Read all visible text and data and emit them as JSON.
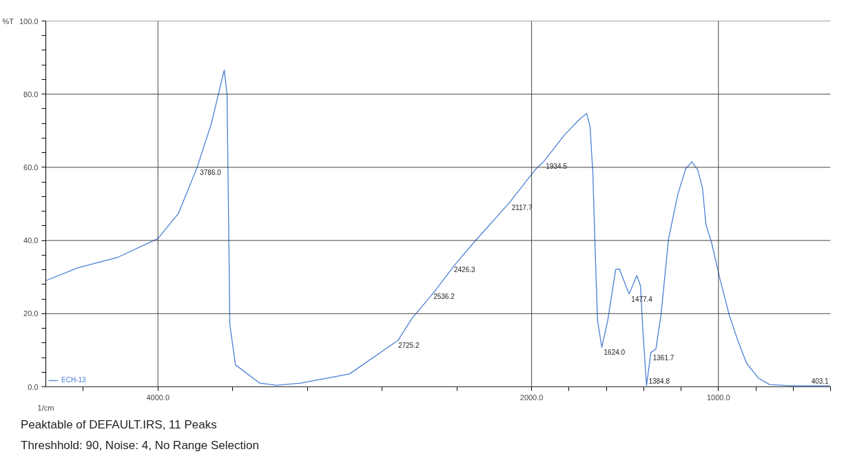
{
  "chart_data": {
    "type": "line",
    "xlabel": "1/cm",
    "ylabel": "%T",
    "xlim": [
      4600,
      400
    ],
    "ylim": [
      0,
      100
    ],
    "xticks": [
      {
        "value": 4400,
        "label": null
      },
      {
        "value": 4000,
        "label": "4000.0"
      },
      {
        "value": 3600,
        "label": null
      },
      {
        "value": 3200,
        "label": null
      },
      {
        "value": 2800,
        "label": null
      },
      {
        "value": 2400,
        "label": null
      },
      {
        "value": 2000,
        "label": "2000.0"
      },
      {
        "value": 1800,
        "label": null
      },
      {
        "value": 1600,
        "label": null
      },
      {
        "value": 1400,
        "label": null
      },
      {
        "value": 1200,
        "label": null
      },
      {
        "value": 1000,
        "label": "1000.0"
      },
      {
        "value": 800,
        "label": null
      },
      {
        "value": 600,
        "label": null
      },
      {
        "value": 400,
        "label": null
      }
    ],
    "yticks": [
      {
        "value": 0,
        "label": "0.0"
      },
      {
        "value": 4,
        "label": null
      },
      {
        "value": 8,
        "label": null
      },
      {
        "value": 12,
        "label": null
      },
      {
        "value": 16,
        "label": null
      },
      {
        "value": 20,
        "label": "20.0"
      },
      {
        "value": 24,
        "label": null
      },
      {
        "value": 28,
        "label": null
      },
      {
        "value": 32,
        "label": null
      },
      {
        "value": 36,
        "label": null
      },
      {
        "value": 40,
        "label": "40.0"
      },
      {
        "value": 44,
        "label": null
      },
      {
        "value": 48,
        "label": null
      },
      {
        "value": 52,
        "label": null
      },
      {
        "value": 56,
        "label": null
      },
      {
        "value": 60,
        "label": "60.0"
      },
      {
        "value": 64,
        "label": null
      },
      {
        "value": 68,
        "label": null
      },
      {
        "value": 72,
        "label": null
      },
      {
        "value": 76,
        "label": null
      },
      {
        "value": 80,
        "label": "80.0"
      },
      {
        "value": 84,
        "label": null
      },
      {
        "value": 88,
        "label": null
      },
      {
        "value": 92,
        "label": null
      },
      {
        "value": 96,
        "label": null
      },
      {
        "value": 100,
        "label": "100.0"
      }
    ],
    "grid": true,
    "legend": "bottom left",
    "line_style": "solid",
    "series": [
      {
        "name": "ECH-13",
        "color": "#4a7fd4",
        "x": [
          4600,
          4430,
          4215,
          4000,
          3890,
          3790,
          3715,
          3645,
          3630,
          3615,
          3585,
          3455,
          3365,
          3235,
          2975,
          2715,
          2640,
          2520,
          2410,
          2310,
          2117.7,
          1980,
          1934.5,
          1825,
          1742,
          1705,
          1687,
          1672,
          1660,
          1647,
          1624,
          1592,
          1550,
          1530,
          1497,
          1477.4,
          1437,
          1417,
          1405,
          1384.8,
          1361.7,
          1335,
          1307,
          1267,
          1217,
          1175,
          1142,
          1110,
          1085,
          1067,
          1037,
          992,
          942,
          900,
          850,
          785,
          725,
          617,
          403.1
        ],
        "values": [
          29,
          32.5,
          35.4,
          40.5,
          47.4,
          60,
          71.8,
          86.6,
          80,
          17,
          6,
          1,
          0.4,
          1,
          3.5,
          12.7,
          18.7,
          26,
          33.4,
          39.4,
          50.4,
          59.4,
          61.6,
          68.8,
          73.2,
          74.7,
          71,
          58.3,
          37.6,
          18.1,
          10.8,
          18.3,
          32.1,
          32.2,
          27.8,
          25.4,
          30.4,
          27.6,
          15.9,
          0.3,
          9.4,
          10.3,
          19.8,
          40.4,
          52.7,
          59.6,
          61.5,
          59.2,
          54.2,
          44.4,
          39.5,
          29.5,
          19.6,
          13.2,
          6.5,
          2.3,
          0.6,
          0.3,
          0.3
        ]
      }
    ],
    "annotations": [
      {
        "text": "3786.0",
        "x": 3786.0,
        "y": 60
      },
      {
        "text": "2725.2",
        "x": 2725.2,
        "y": 12.7
      },
      {
        "text": "2536.2",
        "x": 2536.2,
        "y": 26
      },
      {
        "text": "2426.3",
        "x": 2426.3,
        "y": 33.4
      },
      {
        "text": "2117.7",
        "x": 2117.7,
        "y": 50.4
      },
      {
        "text": "1934.5",
        "x": 1934.5,
        "y": 61.6
      },
      {
        "text": "1624.0",
        "x": 1624.0,
        "y": 10.8
      },
      {
        "text": "1477.4",
        "x": 1477.4,
        "y": 25.4
      },
      {
        "text": "1384.8",
        "x": 1384.8,
        "y": 0.3
      },
      {
        "text": "1361.7",
        "x": 1361.7,
        "y": 9.4
      },
      {
        "text": "403.1",
        "x": 403.1,
        "y": 0.3
      },
      "Peaktable of DEFAULT.IRS, 11 Peaks",
      "Threshhold: 90,   Noise: 4, No Range Selection"
    ]
  }
}
